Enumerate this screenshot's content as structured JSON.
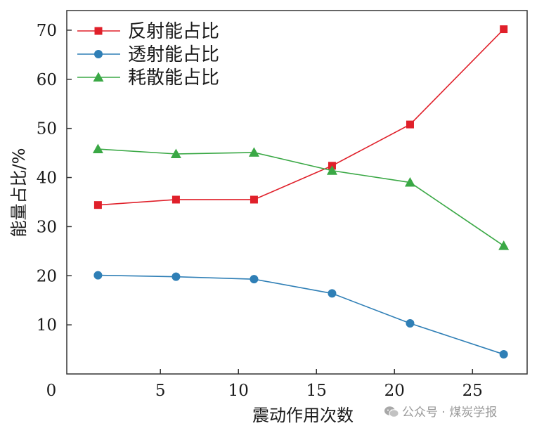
{
  "chart_data": {
    "type": "line",
    "title": "",
    "xlabel": "震动作用次数",
    "ylabel": "能量占比/%",
    "xlim": [
      -1,
      28.5
    ],
    "ylim": [
      0,
      74
    ],
    "x_ticks": [
      0,
      5,
      10,
      15,
      20,
      25
    ],
    "y_ticks": [
      10,
      20,
      30,
      40,
      50,
      60,
      70
    ],
    "grid": false,
    "legend_position": "top-left",
    "x": [
      1,
      6,
      11,
      16,
      21,
      27
    ],
    "series": [
      {
        "name": "反射能占比",
        "color": "#e0202a",
        "marker": "square",
        "values": [
          34.4,
          35.5,
          35.5,
          42.4,
          50.8,
          70.2
        ]
      },
      {
        "name": "透射能占比",
        "color": "#2f7fb6",
        "marker": "circle",
        "values": [
          20.1,
          19.8,
          19.3,
          16.4,
          10.3,
          4.0
        ]
      },
      {
        "name": "耗散能占比",
        "color": "#3aa845",
        "marker": "triangle",
        "values": [
          45.8,
          44.8,
          45.1,
          41.4,
          39.0,
          26.1
        ]
      }
    ]
  },
  "watermark": {
    "text": "公众号 · 煤炭学报",
    "icon": "wechat-icon"
  }
}
